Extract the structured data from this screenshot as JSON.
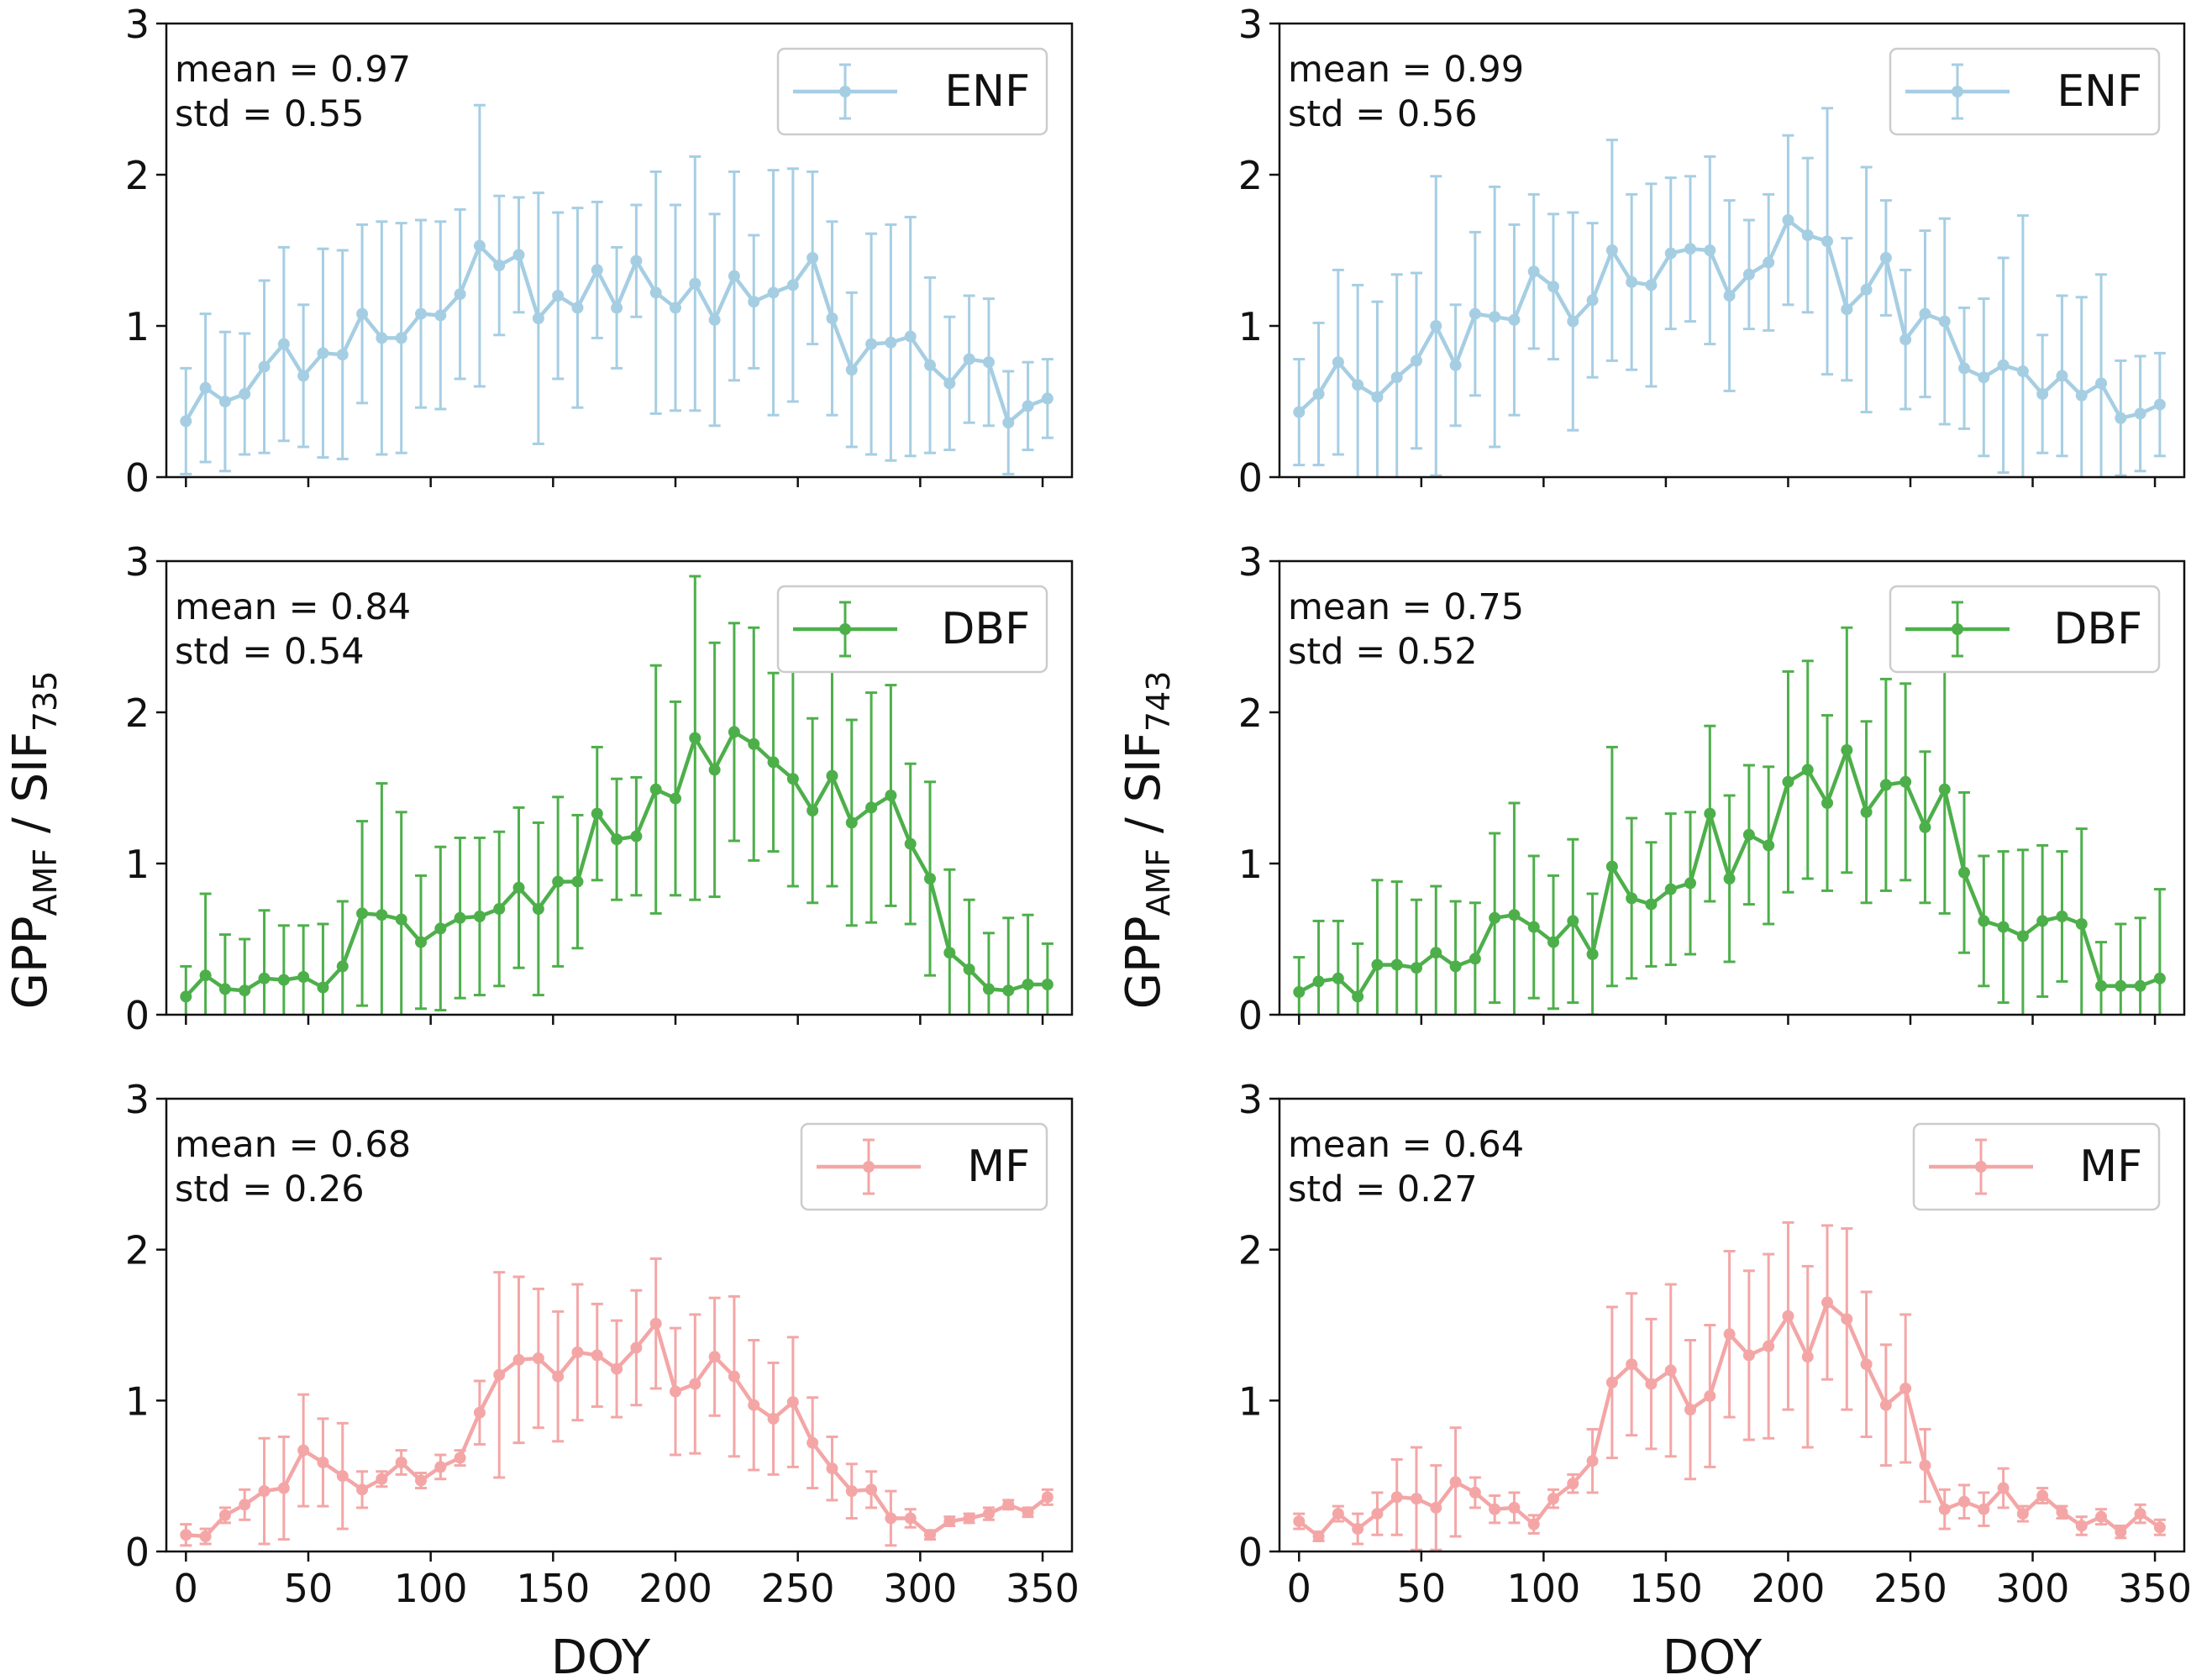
{
  "figure": {
    "xlabel": "DOY",
    "ylabels": {
      "left": {
        "main": "GPP",
        "sub1": "AMF",
        "mid": " / SIF",
        "sub2": "735"
      },
      "right": {
        "main": "GPP",
        "sub1": "AMF",
        "mid": " / SIF",
        "sub2": "743"
      }
    }
  },
  "chart_data": [
    {
      "type": "line",
      "col": "left",
      "row": 0,
      "series_name": "ENF",
      "color": "#a6cee3",
      "mean_text": "mean = 0.97",
      "std_text": "std = 0.55",
      "xlim": [
        -8,
        362
      ],
      "ylim": [
        0,
        3
      ],
      "xticks": [
        0,
        50,
        100,
        150,
        200,
        250,
        300,
        350
      ],
      "yticks": [
        0,
        1,
        2,
        3
      ],
      "x": [
        0,
        8,
        16,
        24,
        32,
        40,
        48,
        56,
        64,
        72,
        80,
        88,
        96,
        104,
        112,
        120,
        128,
        136,
        144,
        152,
        160,
        168,
        176,
        184,
        192,
        200,
        208,
        216,
        224,
        232,
        240,
        248,
        256,
        264,
        272,
        280,
        288,
        296,
        304,
        312,
        320,
        328,
        336,
        344,
        352
      ],
      "y": [
        0.37,
        0.59,
        0.5,
        0.55,
        0.73,
        0.88,
        0.67,
        0.82,
        0.81,
        1.08,
        0.92,
        0.92,
        1.08,
        1.07,
        1.21,
        1.53,
        1.4,
        1.47,
        1.05,
        1.2,
        1.12,
        1.37,
        1.12,
        1.43,
        1.22,
        1.12,
        1.28,
        1.04,
        1.33,
        1.16,
        1.22,
        1.27,
        1.45,
        1.05,
        0.71,
        0.88,
        0.89,
        0.93,
        0.74,
        0.62,
        0.78,
        0.76,
        0.36,
        0.47,
        0.52
      ],
      "err": [
        0.35,
        0.49,
        0.46,
        0.4,
        0.57,
        0.64,
        0.47,
        0.69,
        0.69,
        0.59,
        0.77,
        0.76,
        0.62,
        0.62,
        0.56,
        0.93,
        0.46,
        0.38,
        0.83,
        0.55,
        0.66,
        0.45,
        0.4,
        0.37,
        0.8,
        0.68,
        0.84,
        0.7,
        0.69,
        0.44,
        0.81,
        0.77,
        0.57,
        0.64,
        0.51,
        0.73,
        0.78,
        0.79,
        0.58,
        0.44,
        0.42,
        0.42,
        0.34,
        0.29,
        0.26
      ]
    },
    {
      "type": "line",
      "col": "right",
      "row": 0,
      "series_name": "ENF",
      "color": "#a6cee3",
      "mean_text": "mean = 0.99",
      "std_text": "std = 0.56",
      "xlim": [
        -8,
        362
      ],
      "ylim": [
        0,
        3
      ],
      "xticks": [
        0,
        50,
        100,
        150,
        200,
        250,
        300,
        350
      ],
      "yticks": [
        0,
        1,
        2,
        3
      ],
      "x": [
        0,
        8,
        16,
        24,
        32,
        40,
        48,
        56,
        64,
        72,
        80,
        88,
        96,
        104,
        112,
        120,
        128,
        136,
        144,
        152,
        160,
        168,
        176,
        184,
        192,
        200,
        208,
        216,
        224,
        232,
        240,
        248,
        256,
        264,
        272,
        280,
        288,
        296,
        304,
        312,
        320,
        328,
        336,
        344,
        352
      ],
      "y": [
        0.43,
        0.55,
        0.76,
        0.61,
        0.53,
        0.66,
        0.77,
        1.0,
        0.74,
        1.08,
        1.06,
        1.04,
        1.36,
        1.26,
        1.03,
        1.17,
        1.5,
        1.29,
        1.27,
        1.48,
        1.51,
        1.5,
        1.2,
        1.34,
        1.42,
        1.7,
        1.6,
        1.56,
        1.11,
        1.24,
        1.45,
        0.91,
        1.08,
        1.03,
        0.72,
        0.66,
        0.74,
        0.7,
        0.55,
        0.67,
        0.54,
        0.62,
        0.39,
        0.42,
        0.48
      ],
      "err": [
        0.35,
        0.47,
        0.61,
        0.66,
        0.63,
        0.68,
        0.58,
        0.99,
        0.4,
        0.54,
        0.86,
        0.63,
        0.51,
        0.48,
        0.72,
        0.51,
        0.73,
        0.58,
        0.67,
        0.5,
        0.48,
        0.62,
        0.63,
        0.36,
        0.45,
        0.56,
        0.51,
        0.88,
        0.47,
        0.81,
        0.38,
        0.46,
        0.55,
        0.68,
        0.4,
        0.52,
        0.71,
        1.03,
        0.39,
        0.53,
        0.65,
        0.72,
        0.38,
        0.38,
        0.34
      ]
    },
    {
      "type": "line",
      "col": "left",
      "row": 1,
      "series_name": "DBF",
      "color": "#4daf4a",
      "mean_text": "mean = 0.84",
      "std_text": "std = 0.54",
      "xlim": [
        -8,
        362
      ],
      "ylim": [
        0,
        3
      ],
      "xticks": [
        0,
        50,
        100,
        150,
        200,
        250,
        300,
        350
      ],
      "yticks": [
        0,
        1,
        2,
        3
      ],
      "x": [
        0,
        8,
        16,
        24,
        32,
        40,
        48,
        56,
        64,
        72,
        80,
        88,
        96,
        104,
        112,
        120,
        128,
        136,
        144,
        152,
        160,
        168,
        176,
        184,
        192,
        200,
        208,
        216,
        224,
        232,
        240,
        248,
        256,
        264,
        272,
        280,
        288,
        296,
        304,
        312,
        320,
        328,
        336,
        344,
        352
      ],
      "y": [
        0.12,
        0.26,
        0.17,
        0.16,
        0.24,
        0.23,
        0.25,
        0.18,
        0.32,
        0.67,
        0.66,
        0.63,
        0.48,
        0.57,
        0.64,
        0.65,
        0.7,
        0.84,
        0.7,
        0.88,
        0.88,
        1.33,
        1.16,
        1.18,
        1.49,
        1.43,
        1.83,
        1.62,
        1.87,
        1.79,
        1.67,
        1.56,
        1.35,
        1.58,
        1.27,
        1.37,
        1.45,
        1.13,
        0.9,
        0.41,
        0.3,
        0.17,
        0.16,
        0.2,
        0.2
      ],
      "err": [
        0.2,
        0.54,
        0.36,
        0.34,
        0.45,
        0.36,
        0.34,
        0.42,
        0.43,
        0.61,
        0.87,
        0.71,
        0.44,
        0.54,
        0.53,
        0.52,
        0.51,
        0.53,
        0.57,
        0.56,
        0.44,
        0.44,
        0.4,
        0.39,
        0.82,
        0.64,
        1.07,
        0.84,
        0.72,
        0.77,
        0.59,
        0.71,
        0.61,
        0.73,
        0.68,
        0.76,
        0.73,
        0.53,
        0.64,
        0.55,
        0.46,
        0.37,
        0.48,
        0.46,
        0.27
      ]
    },
    {
      "type": "line",
      "col": "right",
      "row": 1,
      "series_name": "DBF",
      "color": "#4daf4a",
      "mean_text": "mean = 0.75",
      "std_text": "std = 0.52",
      "xlim": [
        -8,
        362
      ],
      "ylim": [
        0,
        3
      ],
      "xticks": [
        0,
        50,
        100,
        150,
        200,
        250,
        300,
        350
      ],
      "yticks": [
        0,
        1,
        2,
        3
      ],
      "x": [
        0,
        8,
        16,
        24,
        32,
        40,
        48,
        56,
        64,
        72,
        80,
        88,
        96,
        104,
        112,
        120,
        128,
        136,
        144,
        152,
        160,
        168,
        176,
        184,
        192,
        200,
        208,
        216,
        224,
        232,
        240,
        248,
        256,
        264,
        272,
        280,
        288,
        296,
        304,
        312,
        320,
        328,
        336,
        344,
        352
      ],
      "y": [
        0.15,
        0.22,
        0.24,
        0.12,
        0.33,
        0.33,
        0.31,
        0.41,
        0.32,
        0.37,
        0.64,
        0.66,
        0.58,
        0.48,
        0.62,
        0.4,
        0.98,
        0.77,
        0.73,
        0.83,
        0.87,
        1.33,
        0.9,
        1.19,
        1.12,
        1.54,
        1.62,
        1.4,
        1.75,
        1.34,
        1.52,
        1.54,
        1.24,
        1.49,
        0.94,
        0.62,
        0.58,
        0.52,
        0.62,
        0.65,
        0.6,
        0.19,
        0.19,
        0.19,
        0.24
      ],
      "err": [
        0.23,
        0.4,
        0.38,
        0.35,
        0.56,
        0.55,
        0.45,
        0.44,
        0.43,
        0.37,
        0.56,
        0.74,
        0.47,
        0.44,
        0.54,
        0.4,
        0.79,
        0.53,
        0.41,
        0.5,
        0.47,
        0.58,
        0.55,
        0.46,
        0.52,
        0.73,
        0.72,
        0.58,
        0.81,
        0.6,
        0.7,
        0.65,
        0.5,
        0.82,
        0.53,
        0.43,
        0.5,
        0.57,
        0.5,
        0.43,
        0.63,
        0.29,
        0.41,
        0.45,
        0.59
      ]
    },
    {
      "type": "line",
      "col": "left",
      "row": 2,
      "series_name": "MF",
      "color": "#f4a6a6",
      "mean_text": "mean = 0.68",
      "std_text": "std = 0.26",
      "xlim": [
        -8,
        362
      ],
      "ylim": [
        0,
        3
      ],
      "xticks": [
        0,
        50,
        100,
        150,
        200,
        250,
        300,
        350
      ],
      "yticks": [
        0,
        1,
        2,
        3
      ],
      "x": [
        0,
        8,
        16,
        24,
        32,
        40,
        48,
        56,
        64,
        72,
        80,
        88,
        96,
        104,
        112,
        120,
        128,
        136,
        144,
        152,
        160,
        168,
        176,
        184,
        192,
        200,
        208,
        216,
        224,
        232,
        240,
        248,
        256,
        264,
        272,
        280,
        288,
        296,
        304,
        312,
        320,
        328,
        336,
        344,
        352
      ],
      "y": [
        0.11,
        0.1,
        0.24,
        0.31,
        0.4,
        0.42,
        0.67,
        0.59,
        0.5,
        0.41,
        0.48,
        0.59,
        0.47,
        0.56,
        0.62,
        0.92,
        1.17,
        1.27,
        1.28,
        1.16,
        1.32,
        1.3,
        1.21,
        1.35,
        1.51,
        1.06,
        1.11,
        1.29,
        1.16,
        0.97,
        0.88,
        0.99,
        0.72,
        0.55,
        0.4,
        0.41,
        0.22,
        0.22,
        0.11,
        0.2,
        0.22,
        0.25,
        0.31,
        0.26,
        0.36
      ],
      "err": [
        0.07,
        0.05,
        0.05,
        0.1,
        0.35,
        0.34,
        0.37,
        0.29,
        0.35,
        0.12,
        0.05,
        0.08,
        0.05,
        0.08,
        0.05,
        0.21,
        0.68,
        0.55,
        0.46,
        0.43,
        0.45,
        0.34,
        0.32,
        0.38,
        0.43,
        0.42,
        0.46,
        0.39,
        0.53,
        0.43,
        0.37,
        0.43,
        0.3,
        0.21,
        0.18,
        0.12,
        0.18,
        0.06,
        0.03,
        0.03,
        0.03,
        0.04,
        0.03,
        0.03,
        0.05
      ]
    },
    {
      "type": "line",
      "col": "right",
      "row": 2,
      "series_name": "MF",
      "color": "#f4a6a6",
      "mean_text": "mean = 0.64",
      "std_text": "std = 0.27",
      "xlim": [
        -8,
        362
      ],
      "ylim": [
        0,
        3
      ],
      "xticks": [
        0,
        50,
        100,
        150,
        200,
        250,
        300,
        350
      ],
      "yticks": [
        0,
        1,
        2,
        3
      ],
      "x": [
        0,
        8,
        16,
        24,
        32,
        40,
        48,
        56,
        64,
        72,
        80,
        88,
        96,
        104,
        112,
        120,
        128,
        136,
        144,
        152,
        160,
        168,
        176,
        184,
        192,
        200,
        208,
        216,
        224,
        232,
        240,
        248,
        256,
        264,
        272,
        280,
        288,
        296,
        304,
        312,
        320,
        328,
        336,
        344,
        352
      ],
      "y": [
        0.2,
        0.1,
        0.25,
        0.15,
        0.25,
        0.36,
        0.35,
        0.29,
        0.46,
        0.39,
        0.28,
        0.29,
        0.18,
        0.35,
        0.45,
        0.6,
        1.12,
        1.24,
        1.11,
        1.2,
        0.94,
        1.03,
        1.44,
        1.3,
        1.36,
        1.56,
        1.29,
        1.65,
        1.54,
        1.24,
        0.97,
        1.08,
        0.57,
        0.28,
        0.33,
        0.28,
        0.42,
        0.25,
        0.37,
        0.26,
        0.17,
        0.23,
        0.13,
        0.25,
        0.16
      ],
      "err": [
        0.05,
        0.03,
        0.05,
        0.1,
        0.14,
        0.25,
        0.34,
        0.28,
        0.36,
        0.1,
        0.09,
        0.1,
        0.06,
        0.06,
        0.06,
        0.21,
        0.5,
        0.47,
        0.43,
        0.57,
        0.46,
        0.47,
        0.55,
        0.56,
        0.61,
        0.62,
        0.6,
        0.51,
        0.6,
        0.48,
        0.4,
        0.49,
        0.24,
        0.13,
        0.11,
        0.11,
        0.13,
        0.05,
        0.05,
        0.04,
        0.06,
        0.05,
        0.04,
        0.06,
        0.05
      ]
    }
  ]
}
